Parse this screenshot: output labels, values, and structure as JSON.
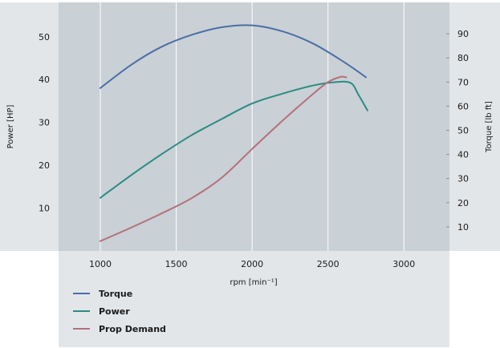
{
  "chart_data": {
    "type": "line",
    "xlabel": "rpm [min⁻¹]",
    "ylabel_left": "Power [HP]",
    "ylabel_right": "Torque [lb ft]",
    "x_ticks": [
      1000,
      1500,
      2000,
      2500,
      3000
    ],
    "y_left_ticks": [
      10,
      20,
      30,
      40,
      50
    ],
    "y_right_ticks": [
      10,
      20,
      30,
      40,
      50,
      60,
      70,
      80,
      90
    ],
    "x_range": [
      725,
      3300
    ],
    "y_left_range": [
      0,
      58
    ],
    "y_right_range": [
      0,
      103
    ],
    "grid": "vertical",
    "legend_position": "bottom-left",
    "colors": {
      "plot_background": "#c9d0d6",
      "panel_background": "#e3e6e9",
      "grid": "#ffffff",
      "torque": "#4a6fa5",
      "power": "#2a8c82",
      "prop_demand": "#b5707a"
    },
    "series": [
      {
        "name": "Torque",
        "axis": "right",
        "color": "#4a6fa5",
        "x": [
          1000,
          1200,
          1400,
          1600,
          1800,
          2000,
          2200,
          2400,
          2600,
          2750
        ],
        "y": [
          67.5,
          77,
          84.5,
          89.5,
          92.7,
          93.5,
          91,
          86,
          78.5,
          72
        ]
      },
      {
        "name": "Power",
        "axis": "left",
        "color": "#2a8c82",
        "x": [
          1000,
          1200,
          1400,
          1600,
          1800,
          2000,
          2200,
          2400,
          2550,
          2650,
          2700,
          2760
        ],
        "y": [
          12.4,
          17.6,
          22.5,
          27.0,
          30.8,
          34.4,
          36.7,
          38.6,
          39.4,
          39.2,
          36.5,
          32.8
        ]
      },
      {
        "name": "Prop Demand",
        "axis": "left",
        "color": "#b5707a",
        "x": [
          1000,
          1200,
          1400,
          1600,
          1800,
          2000,
          2200,
          2400,
          2500,
          2580,
          2620
        ],
        "y": [
          2.3,
          5.4,
          8.7,
          12.3,
          17.1,
          23.8,
          30.4,
          36.6,
          39.4,
          40.6,
          40.5
        ]
      }
    ]
  }
}
